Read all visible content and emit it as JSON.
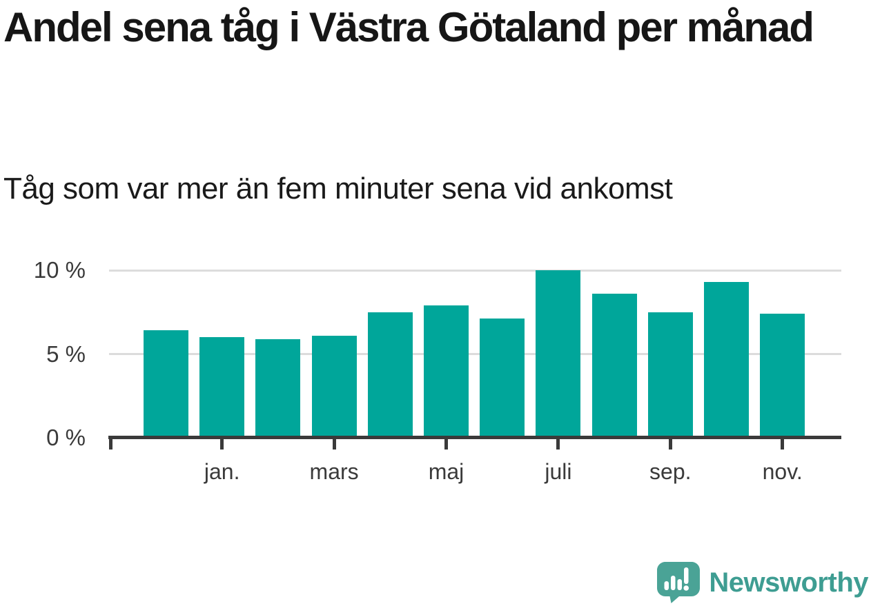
{
  "header": {
    "title": "Andel sena tåg i Västra Götaland per månad",
    "subtitle": "Tåg som var mer än fem minuter sena vid ankomst"
  },
  "chart_data": {
    "type": "bar",
    "title": "Andel sena tåg i Västra Götaland per månad",
    "subtitle": "Tåg som var mer än fem minuter sena vid ankomst",
    "unit": "%",
    "categories": [
      "",
      "jan.",
      "",
      "mars",
      "",
      "maj",
      "",
      "juli",
      "",
      "sep.",
      "",
      "nov."
    ],
    "values": [
      6.4,
      6.0,
      5.9,
      6.1,
      7.5,
      7.9,
      7.1,
      10.0,
      8.6,
      7.5,
      9.3,
      7.4
    ],
    "ylim": [
      0,
      10
    ],
    "yticks": [
      {
        "value": 0,
        "label": "0 %"
      },
      {
        "value": 5,
        "label": "5 %"
      },
      {
        "value": 10,
        "label": "10 %"
      }
    ],
    "grid": "horizontal",
    "legend": "none",
    "bar_color": "#00a69a"
  },
  "colors": {
    "bar": "#00a69a",
    "gridline": "#dcdcdc",
    "axis": "#3a3a3a",
    "tick_label": "#3a3a3a",
    "title": "#161616"
  },
  "footer": {
    "brand": "Newsworthy",
    "icon_color": "#4aa396",
    "text_color": "#3e9d92"
  }
}
